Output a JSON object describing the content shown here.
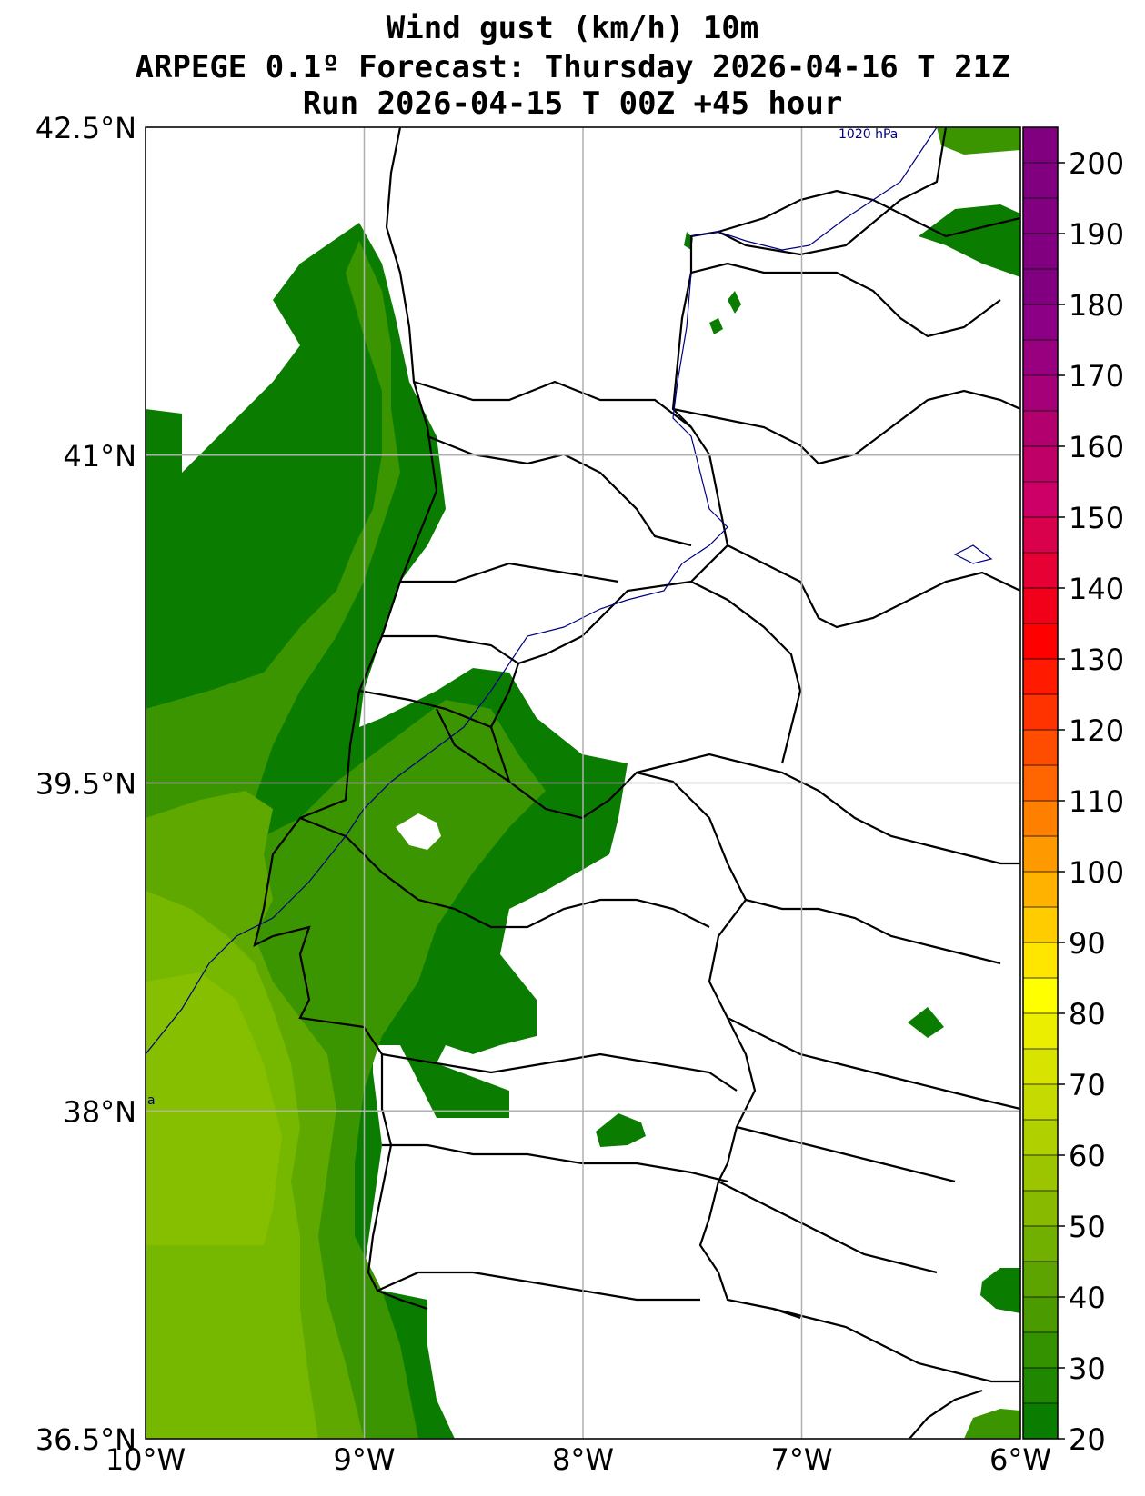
{
  "titles": {
    "line1": "Wind gust (km/h) 10m",
    "line2": "ARPEGE 0.1º Forecast: Thursday 2026-04-16 T 21Z",
    "line3": "Run 2026-04-15 T 00Z +45 hour"
  },
  "map": {
    "lon_range": [
      -10,
      -6
    ],
    "lat_range": [
      36.5,
      42.5
    ],
    "lon_ticks": [
      {
        "value": -10,
        "label": "10°W"
      },
      {
        "value": -9,
        "label": "9°W"
      },
      {
        "value": -8,
        "label": "8°W"
      },
      {
        "value": -7,
        "label": "7°W"
      },
      {
        "value": -6,
        "label": "6°W"
      }
    ],
    "lat_ticks": [
      {
        "value": 42.5,
        "label": "42.5°N"
      },
      {
        "value": 41,
        "label": "41°N"
      },
      {
        "value": 39.5,
        "label": "39.5°N"
      },
      {
        "value": 38,
        "label": "38°N"
      },
      {
        "value": 36.5,
        "label": "36.5°N"
      }
    ],
    "isobar_label": "1020 hPa",
    "isobar_label_small": "a",
    "grid": true
  },
  "colorbar": {
    "min": 20,
    "max": 205,
    "step": 5,
    "ticks": [
      20,
      30,
      40,
      50,
      60,
      70,
      80,
      90,
      100,
      110,
      120,
      130,
      140,
      150,
      160,
      170,
      180,
      190,
      200
    ],
    "colors": [
      "#0a7d00",
      "#1f8800",
      "#349100",
      "#4a9a00",
      "#5ea400",
      "#72b000",
      "#88bb00",
      "#9cc500",
      "#b0d000",
      "#c4da00",
      "#d8e400",
      "#ecee00",
      "#ffff00",
      "#ffe600",
      "#ffcc00",
      "#ffb300",
      "#ff9900",
      "#ff8000",
      "#ff6600",
      "#ff4d00",
      "#ff3300",
      "#ff1a00",
      "#ff0000",
      "#f2001a",
      "#e60033",
      "#d9004c",
      "#cc0066",
      "#bf0066",
      "#b2006e",
      "#a50078",
      "#980080",
      "#8c0085",
      "#800080",
      "#800080",
      "#800080",
      "#800080",
      "#800080"
    ]
  },
  "palette": {
    "wind_20_30": "#0a7d00",
    "wind_30_40": "#3a9500",
    "wind_40_50": "#5ea800",
    "wind_50_55": "#76b800",
    "wind_55_60": "#86be00",
    "coast": "#000000",
    "isobar": "#000080"
  }
}
